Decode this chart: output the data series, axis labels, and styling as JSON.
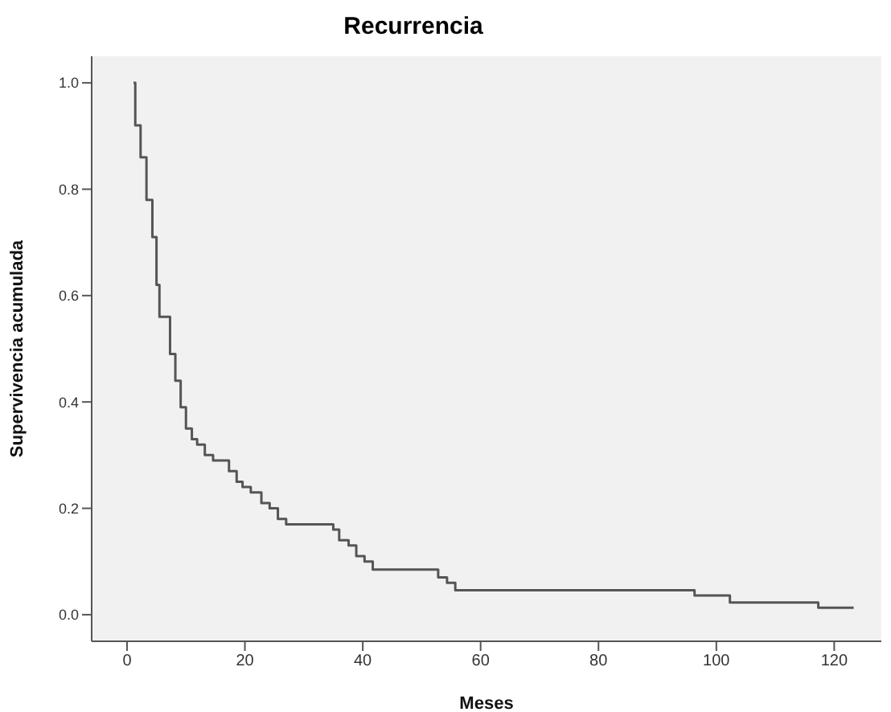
{
  "chart_data": {
    "type": "step",
    "title": "Recurrencia",
    "xlabel": "Meses",
    "ylabel": "Supervivencia acumulada",
    "color": "#555555",
    "x": [
      1.1,
      1.4,
      2.3,
      3.3,
      4.3,
      5,
      5.5,
      7.3,
      8.2,
      9.1,
      10,
      11,
      11.9,
      13.2,
      14.6,
      17.3,
      18.6,
      19.6,
      21,
      22.8,
      24.2,
      25.6,
      27,
      35,
      36,
      37.6,
      38.9,
      40.3,
      41.7,
      52.8,
      54.3,
      55.7,
      96.3,
      102.3,
      117.3,
      123.3
    ],
    "values": [
      1.0,
      0.92,
      0.86,
      0.78,
      0.71,
      0.62,
      0.56,
      0.49,
      0.44,
      0.39,
      0.35,
      0.33,
      0.32,
      0.3,
      0.29,
      0.27,
      0.25,
      0.24,
      0.23,
      0.21,
      0.2,
      0.18,
      0.17,
      0.16,
      0.14,
      0.13,
      0.11,
      0.1,
      0.085,
      0.07,
      0.06,
      0.046,
      0.036,
      0.023,
      0.013,
      0.013
    ],
    "xlim": [
      -6,
      128
    ],
    "xticks": [
      0,
      20,
      40,
      60,
      80,
      100,
      120
    ],
    "ylim": [
      -0.05,
      1.05
    ],
    "yticks": [
      {
        "value": 0,
        "label": "0.0"
      },
      0.2,
      0.4,
      0.6,
      0.8,
      {
        "value": 1,
        "label": "1.0"
      }
    ]
  }
}
